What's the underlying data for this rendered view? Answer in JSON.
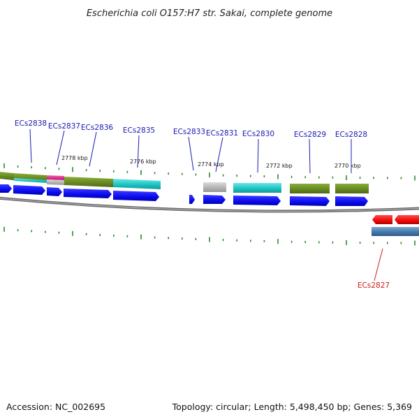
{
  "title": "Escherichia coli O157:H7 str. Sakai, complete genome",
  "footer": {
    "accession": "Accession: NC_002695",
    "topology": "Topology: circular; Length: 5,498,450 bp; Genes: 5,369"
  },
  "ruler_labels": [
    "2778 kbp",
    "2776 kbp",
    "2774 kbp",
    "2772 kbp",
    "2770 kbp"
  ],
  "gene_labels": {
    "forward": [
      "ECs2838",
      "ECs2837",
      "ECs2836",
      "ECs2835",
      "ECs2833",
      "ECs2831",
      "ECs2830",
      "ECs2829",
      "ECs2828"
    ],
    "reverse": [
      "ECs2827"
    ]
  },
  "colors": {
    "forward_gene": "#0a0aee",
    "reverse_gene": "#ee0a0a",
    "forward_label": "#1a1ab0",
    "reverse_label": "#d01a1a",
    "backbone": "#7a7a7a",
    "tick": "#2a8a2a",
    "feature_olive": "#6b8e23",
    "feature_cyan": "#20c8c8",
    "feature_magenta": "#e0208a",
    "feature_gray": "#b8b8b8",
    "feature_steel": "#4a7cae"
  }
}
